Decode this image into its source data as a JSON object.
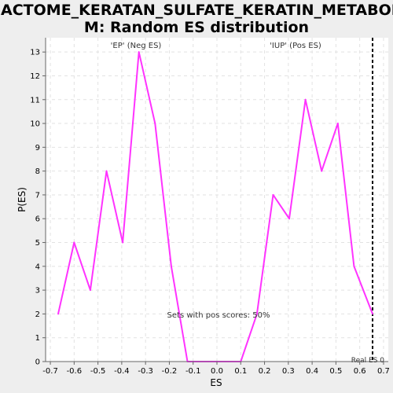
{
  "chart_data": {
    "type": "line",
    "title_line1": "REACTOME_KERATAN_SULFATE_KERATIN_METABOLIS",
    "title_line2": "M: Random ES distribution",
    "xlabel": "ES",
    "ylabel": "P(ES)",
    "xlim": [
      -0.72,
      0.72
    ],
    "ylim": [
      0,
      13.6
    ],
    "xticks": [
      -0.7,
      -0.6,
      -0.5,
      -0.4,
      -0.3,
      -0.2,
      -0.1,
      0.0,
      0.1,
      0.2,
      0.3,
      0.4,
      0.5,
      0.6,
      0.7
    ],
    "xtick_labels": [
      "-0.7",
      "-0.6",
      "-0.5",
      "-0.4",
      "-0.3",
      "-0.2",
      "-0.1",
      "0.0",
      "0.1",
      "0.2",
      "0.3",
      "0.4",
      "0.5",
      "0.6",
      "0.7"
    ],
    "yticks": [
      0,
      1,
      2,
      3,
      4,
      5,
      6,
      7,
      8,
      9,
      10,
      11,
      12,
      13
    ],
    "ytick_labels": [
      "0",
      "1",
      "2",
      "3",
      "4",
      "5",
      "6",
      "7",
      "8",
      "9",
      "10",
      "11",
      "12",
      "13"
    ],
    "grid": true,
    "series": [
      {
        "color": "#ff33ff",
        "x": [
          -0.667,
          -0.6,
          -0.532,
          -0.464,
          -0.396,
          -0.328,
          -0.26,
          -0.192,
          -0.124,
          0.1,
          0.168,
          0.236,
          0.304,
          0.372,
          0.44,
          0.508,
          0.576,
          0.654
        ],
        "y": [
          2,
          5,
          3,
          8,
          5,
          13,
          10,
          4,
          0,
          0,
          2,
          7,
          6,
          11,
          8,
          10,
          4,
          2
        ]
      }
    ],
    "annotations": {
      "neg_label": "'EP' (Neg ES)",
      "neg_color": "#3333cc",
      "pos_label": "'IUP' (Pos ES)",
      "pos_color": "#cc3333",
      "pos_scores_text": "Sets with pos scores: 50%",
      "real_es_label": "Real ES 0",
      "real_es_value": 0.654
    }
  }
}
